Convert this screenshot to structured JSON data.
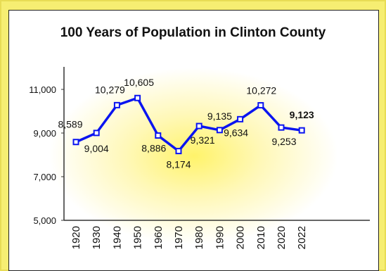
{
  "chart_data": {
    "type": "line",
    "title": "100 Years of Population in Clinton County",
    "xlabel": "",
    "ylabel": "",
    "categories": [
      "1920",
      "1930",
      "1940",
      "1950",
      "1960",
      "1970",
      "1980",
      "1990",
      "2000",
      "2010",
      "2020",
      "2022"
    ],
    "series": [
      {
        "values": [
          8589,
          9004,
          10279,
          10605,
          8886,
          8174,
          9321,
          9135,
          9634,
          10272,
          9253,
          9123
        ],
        "value_labels": [
          "8,589",
          "9,004",
          "10,279",
          "10,605",
          "8,886",
          "8,174",
          "9,321",
          "9,135",
          "9,634",
          "10,272",
          "9,253",
          "9,123"
        ],
        "color": "#0a14f0"
      }
    ],
    "ylim": [
      5000,
      12000
    ],
    "yticks": [
      5000,
      7000,
      9000,
      11000
    ],
    "ytick_labels": [
      "5,000",
      "7,000",
      "9,000",
      "11,000"
    ],
    "grid": false,
    "legend": "none",
    "emphasized_label": "9,123"
  },
  "colors": {
    "line": "#0a14f0",
    "frame": "#f6ee72",
    "glow": "#fff36a"
  }
}
